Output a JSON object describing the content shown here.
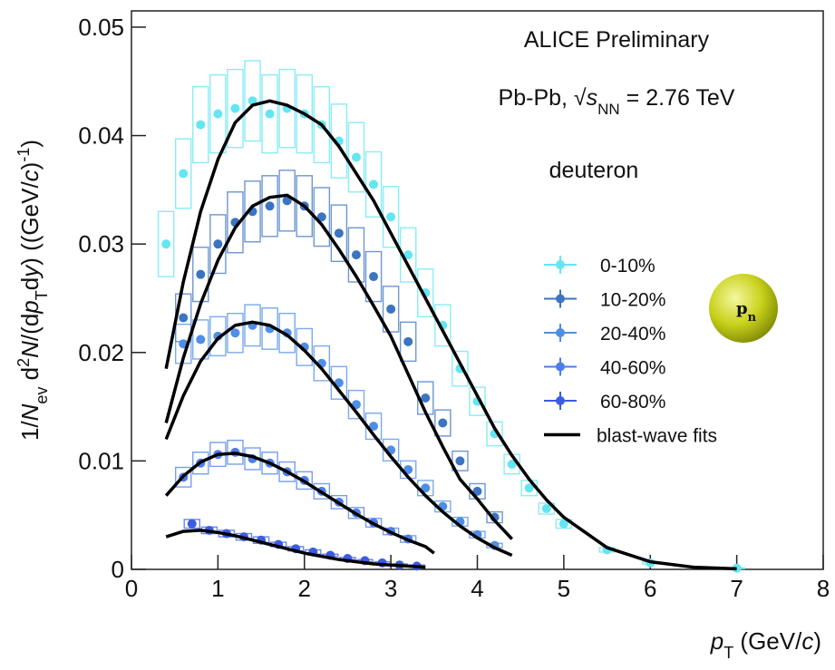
{
  "chart_data": {
    "type": "scatter",
    "annotations": [
      "ALICE Preliminary",
      "deuteron"
    ],
    "collision": {
      "prefix": "Pb-Pb, √",
      "var": "s",
      "sub": "NN",
      "suffix": " = 2.76 TeV"
    },
    "icon": {
      "text": "p",
      "sub": "n"
    },
    "x_label": [
      {
        "text": "p",
        "style": "italic"
      },
      {
        "text": "T",
        "style": "sub"
      },
      {
        "text": " (GeV/",
        "style": "normal"
      },
      {
        "text": "c",
        "style": "italic"
      },
      {
        "text": ")",
        "style": "normal"
      }
    ],
    "y_label": [
      {
        "text": "1/",
        "style": "normal"
      },
      {
        "text": "N",
        "style": "italic"
      },
      {
        "text": "ev",
        "style": "sub"
      },
      {
        "text": " d",
        "style": "normal"
      },
      {
        "text": "2",
        "style": "sup"
      },
      {
        "text": "N",
        "style": "italic"
      },
      {
        "text": "/(d",
        "style": "normal"
      },
      {
        "text": "p",
        "style": "italic"
      },
      {
        "text": "T",
        "style": "sub"
      },
      {
        "text": "d",
        "style": "normal"
      },
      {
        "text": "y",
        "style": "italic"
      },
      {
        "text": ") ((GeV/",
        "style": "normal"
      },
      {
        "text": "c",
        "style": "italic"
      },
      {
        "text": ")",
        "style": "normal"
      },
      {
        "text": "-1",
        "style": "sup"
      },
      {
        "text": ")",
        "style": "normal"
      }
    ],
    "xlim": [
      0,
      8
    ],
    "ylim": [
      0,
      0.0515
    ],
    "xticks": [
      0,
      1,
      2,
      3,
      4,
      5,
      6,
      7,
      8
    ],
    "yticks": [
      0,
      0.01,
      0.02,
      0.03,
      0.04,
      0.05
    ],
    "legend_position": "right",
    "series": [
      {
        "name": "0-10%",
        "color": "#63e6f2",
        "x": [
          0.4,
          0.6,
          0.8,
          1.0,
          1.2,
          1.4,
          1.6,
          1.8,
          2.0,
          2.2,
          2.4,
          2.6,
          2.8,
          3.0,
          3.2,
          3.4,
          3.6,
          3.8,
          4.0,
          4.2,
          4.4,
          4.6,
          4.8,
          5.0,
          5.5,
          6.0,
          7.0
        ],
        "values": [
          0.03,
          0.0365,
          0.041,
          0.042,
          0.0425,
          0.0432,
          0.042,
          0.0425,
          0.042,
          0.041,
          0.0395,
          0.038,
          0.0355,
          0.0325,
          0.029,
          0.0255,
          0.0225,
          0.0185,
          0.0155,
          0.0125,
          0.0097,
          0.0075,
          0.0056,
          0.0042,
          0.0018,
          0.0006,
          0.0001
        ],
        "errors": [
          0.003,
          0.0032,
          0.0035,
          0.0036,
          0.0036,
          0.0037,
          0.0036,
          0.0036,
          0.0036,
          0.0035,
          0.0034,
          0.0032,
          0.003,
          0.0028,
          0.0025,
          0.0022,
          0.0019,
          0.0016,
          0.0013,
          0.0011,
          0.0009,
          0.0007,
          0.0005,
          0.0004,
          0.0002,
          0.0001,
          5e-05
        ]
      },
      {
        "name": "10-20%",
        "color": "#3c74c2",
        "x": [
          0.6,
          0.8,
          1.0,
          1.2,
          1.4,
          1.6,
          1.8,
          2.0,
          2.2,
          2.4,
          2.6,
          2.8,
          3.0,
          3.2,
          3.4,
          3.6,
          3.8,
          4.0,
          4.2
        ],
        "values": [
          0.0232,
          0.0272,
          0.03,
          0.032,
          0.033,
          0.0335,
          0.034,
          0.0335,
          0.0325,
          0.031,
          0.029,
          0.027,
          0.024,
          0.021,
          0.0158,
          0.0135,
          0.01,
          0.0072,
          0.0048
        ],
        "errors": [
          0.0022,
          0.0025,
          0.0027,
          0.0028,
          0.0028,
          0.0028,
          0.0028,
          0.0028,
          0.0027,
          0.0026,
          0.0025,
          0.0023,
          0.0021,
          0.0018,
          0.0015,
          0.0012,
          0.0009,
          0.0007,
          0.0005
        ]
      },
      {
        "name": "20-40%",
        "color": "#4f8ee6",
        "x": [
          0.6,
          0.8,
          1.0,
          1.2,
          1.4,
          1.6,
          1.8,
          2.0,
          2.2,
          2.4,
          2.6,
          2.8,
          3.0,
          3.2,
          3.4,
          3.6,
          3.8,
          4.0,
          4.2
        ],
        "values": [
          0.0208,
          0.0212,
          0.0215,
          0.0218,
          0.0225,
          0.0222,
          0.0218,
          0.0205,
          0.019,
          0.0172,
          0.0152,
          0.0132,
          0.011,
          0.0092,
          0.0075,
          0.0058,
          0.0044,
          0.0032,
          0.0022
        ],
        "errors": [
          0.0018,
          0.0018,
          0.0018,
          0.0018,
          0.0019,
          0.0019,
          0.0018,
          0.0017,
          0.0016,
          0.0015,
          0.0013,
          0.0012,
          0.001,
          0.0008,
          0.0007,
          0.0005,
          0.0004,
          0.0003,
          0.0002
        ]
      },
      {
        "name": "40-60%",
        "color": "#4a7ee8",
        "x": [
          0.6,
          0.8,
          1.0,
          1.2,
          1.4,
          1.6,
          1.8,
          2.0,
          2.2,
          2.4,
          2.6,
          2.8,
          3.0,
          3.2
        ],
        "values": [
          0.0085,
          0.0098,
          0.0106,
          0.0108,
          0.0102,
          0.0098,
          0.009,
          0.0082,
          0.0072,
          0.0062,
          0.0052,
          0.0043,
          0.0035,
          0.0028
        ],
        "errors": [
          0.0009,
          0.001,
          0.0011,
          0.0011,
          0.001,
          0.001,
          0.0009,
          0.0008,
          0.0007,
          0.0006,
          0.0005,
          0.0004,
          0.0003,
          0.0003
        ]
      },
      {
        "name": "60-80%",
        "color": "#3c5ce0",
        "x": [
          0.7,
          0.9,
          1.1,
          1.3,
          1.5,
          1.7,
          1.9,
          2.1,
          2.3,
          2.5,
          2.7,
          2.9,
          3.1,
          3.3
        ],
        "values": [
          0.0042,
          0.0036,
          0.0033,
          0.003,
          0.0027,
          0.0023,
          0.0019,
          0.0016,
          0.0013,
          0.001,
          0.0008,
          0.0006,
          0.0004,
          0.0003
        ],
        "errors": [
          0.0004,
          0.0003,
          0.0003,
          0.0003,
          0.0003,
          0.0002,
          0.0002,
          0.0002,
          0.0001,
          0.0001,
          0.0001,
          0.0001,
          0.0001,
          0.0001
        ]
      }
    ],
    "fits": {
      "name": "blast-wave fits",
      "color": "#000000",
      "curves": [
        {
          "x": [
            0.4,
            0.6,
            0.8,
            1.0,
            1.2,
            1.4,
            1.6,
            1.8,
            2.0,
            2.2,
            2.4,
            2.6,
            2.8,
            3.0,
            3.2,
            3.4,
            3.6,
            3.8,
            4.0,
            4.2,
            4.4,
            4.6,
            4.8,
            5.0,
            5.5,
            6.0,
            6.5,
            7.0
          ],
          "values": [
            0.0185,
            0.0265,
            0.033,
            0.0378,
            0.0412,
            0.0428,
            0.0432,
            0.0428,
            0.042,
            0.041,
            0.039,
            0.0365,
            0.034,
            0.031,
            0.028,
            0.025,
            0.022,
            0.019,
            0.016,
            0.013,
            0.0105,
            0.0083,
            0.0064,
            0.0048,
            0.002,
            0.0007,
            0.0002,
            5e-05
          ]
        },
        {
          "x": [
            0.4,
            0.6,
            0.8,
            1.0,
            1.2,
            1.4,
            1.6,
            1.8,
            2.0,
            2.2,
            2.4,
            2.6,
            2.8,
            3.0,
            3.2,
            3.4,
            3.6,
            3.8,
            4.0,
            4.2,
            4.4
          ],
          "values": [
            0.0135,
            0.0195,
            0.0245,
            0.0285,
            0.0315,
            0.0335,
            0.0343,
            0.0345,
            0.0335,
            0.0318,
            0.0295,
            0.027,
            0.0243,
            0.0215,
            0.018,
            0.0145,
            0.0113,
            0.0083,
            0.0065,
            0.0045,
            0.0028
          ]
        },
        {
          "x": [
            0.4,
            0.6,
            0.8,
            1.0,
            1.2,
            1.4,
            1.6,
            1.8,
            2.0,
            2.2,
            2.4,
            2.6,
            2.8,
            3.0,
            3.2,
            3.4,
            3.6,
            3.8,
            4.0,
            4.2,
            4.4
          ],
          "values": [
            0.012,
            0.016,
            0.0192,
            0.0213,
            0.0225,
            0.0228,
            0.0225,
            0.0216,
            0.0202,
            0.0185,
            0.0165,
            0.0145,
            0.0124,
            0.0104,
            0.0085,
            0.0068,
            0.0053,
            0.004,
            0.0029,
            0.002,
            0.0013
          ]
        },
        {
          "x": [
            0.4,
            0.6,
            0.8,
            1.0,
            1.2,
            1.4,
            1.6,
            1.8,
            2.0,
            2.2,
            2.4,
            2.6,
            2.8,
            3.0,
            3.2,
            3.4,
            3.5
          ],
          "values": [
            0.0068,
            0.0086,
            0.0099,
            0.0106,
            0.0107,
            0.0104,
            0.0098,
            0.009,
            0.0081,
            0.0071,
            0.0061,
            0.0051,
            0.0042,
            0.0034,
            0.0027,
            0.0021,
            0.0015
          ]
        },
        {
          "x": [
            0.4,
            0.6,
            0.8,
            1.0,
            1.2,
            1.4,
            1.6,
            1.8,
            2.0,
            2.2,
            2.4,
            2.6,
            2.8,
            3.0,
            3.2,
            3.4
          ],
          "values": [
            0.003,
            0.0035,
            0.0036,
            0.0034,
            0.0031,
            0.0027,
            0.0023,
            0.0019,
            0.0015,
            0.0012,
            0.0009,
            0.0007,
            0.0005,
            0.0004,
            0.0003,
            0.0002
          ]
        }
      ]
    }
  }
}
